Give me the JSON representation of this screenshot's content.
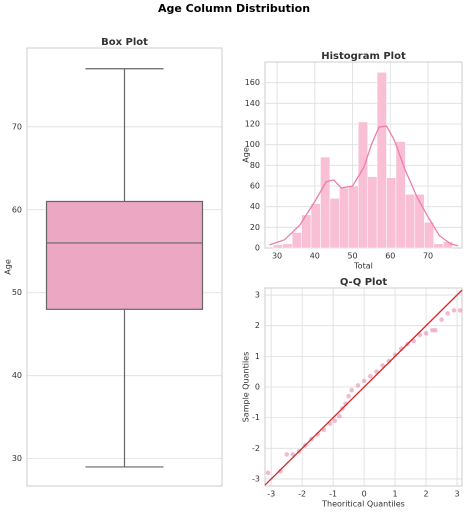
{
  "title": "Age Column Distribution",
  "chart_data": [
    {
      "type": "box",
      "title": "Box Plot",
      "ylabel": "Age",
      "min": 29,
      "q1": 48,
      "median": 56,
      "q3": 61,
      "max": 77,
      "color": "#eca7c3",
      "ylim": [
        26.7,
        79.5
      ],
      "yticks": [
        30,
        40,
        50,
        60,
        70
      ],
      "grid": true
    },
    {
      "type": "histogram",
      "title": "Histogram Plot",
      "xlabel": "Total",
      "ylabel": "Age",
      "bins": [
        29,
        31.5,
        34,
        36.5,
        39,
        41.5,
        44,
        46.5,
        49,
        51.5,
        54,
        56.5,
        59,
        61.5,
        64,
        66.5,
        69,
        71.5,
        74,
        76.5
      ],
      "counts": [
        3,
        4,
        15,
        32,
        43,
        88,
        48,
        58,
        60,
        122,
        69,
        170,
        68,
        103,
        52,
        52,
        25,
        4,
        6
      ],
      "color": "#f8bfd5",
      "kde": {
        "color": "#ee7eaa",
        "x": [
          28,
          32,
          36,
          40,
          43,
          45,
          47,
          50,
          53,
          55,
          57,
          59,
          61,
          64,
          67,
          70,
          73,
          76,
          78
        ],
        "y": [
          3,
          8,
          22,
          45,
          64,
          66,
          58,
          60,
          78,
          100,
          117,
          118,
          105,
          75,
          50,
          30,
          12,
          4,
          2
        ]
      },
      "xlim": [
        26.8,
        79
      ],
      "xticks": [
        30,
        40,
        50,
        60,
        70
      ],
      "ylim": [
        0,
        180
      ],
      "yticks": [
        0,
        20,
        40,
        60,
        80,
        100,
        120,
        140,
        160
      ],
      "grid": true
    },
    {
      "type": "qq",
      "title": "Q-Q Plot",
      "xlabel": "Theoritical Quantiles",
      "ylabel": "Sample Quantiles",
      "x": [
        -3.1,
        -2.7,
        -2.5,
        -2.3,
        -2.1,
        -1.9,
        -1.7,
        -1.5,
        -1.3,
        -1.1,
        -0.95,
        -0.8,
        -0.7,
        -0.6,
        -0.5,
        -0.4,
        -0.2,
        0,
        0.2,
        0.4,
        0.6,
        0.8,
        1,
        1.2,
        1.4,
        1.6,
        1.8,
        2,
        2.2,
        2.3,
        2.5,
        2.7,
        2.9,
        3.1
      ],
      "y": [
        -2.8,
        -2.75,
        -2.2,
        -2.2,
        -2.1,
        -1.9,
        -1.7,
        -1.55,
        -1.4,
        -1.2,
        -1.1,
        -0.95,
        -0.7,
        -0.55,
        -0.3,
        -0.1,
        0.05,
        0.2,
        0.35,
        0.5,
        0.7,
        0.85,
        1.05,
        1.25,
        1.4,
        1.5,
        1.7,
        1.75,
        1.85,
        1.85,
        2.2,
        2.4,
        2.5,
        2.5
      ],
      "color": "#e98bb2",
      "line_x": [
        -3.2,
        3.16
      ],
      "line_y": [
        -3.2,
        3.16
      ],
      "line_color": "#d62728",
      "xlim": [
        -3.2,
        3.16
      ],
      "xticks": [
        -3,
        -2,
        -1,
        0,
        1,
        2,
        3
      ],
      "ylim": [
        -3.23,
        3.23
      ],
      "yticks": [
        -3,
        -2,
        -1,
        0,
        1,
        2,
        3
      ],
      "grid": true
    }
  ]
}
